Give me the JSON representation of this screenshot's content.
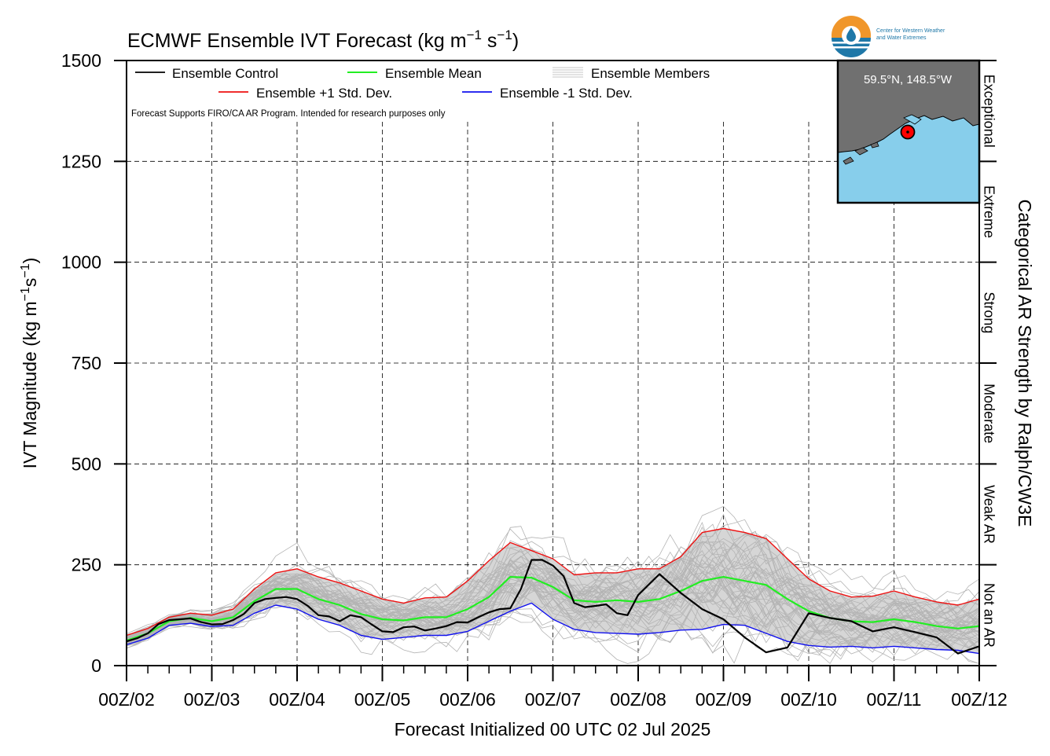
{
  "header": {
    "title": "ECMWF Ensemble IVT Forecast (kg m",
    "title_exp1": "−1",
    "title_mid": " s",
    "title_exp2": "−1",
    "title_end": ")",
    "logo_text_line1": "Center for Western Weather",
    "logo_text_line2": "and Water Extremes"
  },
  "inset": {
    "location_label": "59.5°N, 148.5°W"
  },
  "legend": {
    "control": "Ensemble Control",
    "mean": "Ensemble Mean",
    "members": "Ensemble Members",
    "plus_std": "Ensemble +1 Std. Dev.",
    "minus_std": "Ensemble -1 Std. Dev.",
    "disclaimer": "Forecast Supports FIRO/CA AR Program. Intended for research purposes only"
  },
  "colors": {
    "control": "#000000",
    "mean": "#22ee22",
    "plus_std": "#ee1111",
    "minus_std": "#1111ee",
    "members": "#b4b4b4",
    "spread_fill": "#d6d6d6",
    "ocean": "#87ceeb",
    "land": "#707070",
    "logo_orange": "#f0962a",
    "logo_blue": "#1f78a8"
  },
  "axes": {
    "ylabel_main": "IVT Magnitude (kg m",
    "ylabel_exp1": "−1",
    "ylabel_mid": "s",
    "ylabel_exp2": "−1",
    "ylabel_end": ")",
    "xlabel": "Forecast Initialized 00 UTC 02 Jul 2025",
    "right_label": "Categorical AR Strength by Ralph/CW3E",
    "categories": [
      {
        "label": "Not an AR",
        "from": 0,
        "to": 250
      },
      {
        "label": "Weak AR",
        "from": 250,
        "to": 500
      },
      {
        "label": "Moderate",
        "from": 500,
        "to": 750
      },
      {
        "label": "Strong",
        "from": 750,
        "to": 1000
      },
      {
        "label": "Extreme",
        "from": 1000,
        "to": 1250
      },
      {
        "label": "Exceptional",
        "from": 1250,
        "to": 1500
      }
    ]
  },
  "chart_data": {
    "type": "line",
    "title": "ECMWF Ensemble IVT Forecast (kg m−1 s−1)",
    "xlabel": "Forecast Initialized 00 UTC 02 Jul 2025",
    "ylabel": "IVT Magnitude (kg m−1s−1)",
    "ylim": [
      0,
      1500
    ],
    "yticks": [
      0,
      250,
      500,
      750,
      1000,
      1250,
      1500
    ],
    "xlim": [
      0,
      240
    ],
    "x_unit": "forecast hours",
    "xticks": [
      {
        "x": 0,
        "label": "00Z/02"
      },
      {
        "x": 24,
        "label": "00Z/03"
      },
      {
        "x": 48,
        "label": "00Z/04"
      },
      {
        "x": 72,
        "label": "00Z/05"
      },
      {
        "x": 96,
        "label": "00Z/06"
      },
      {
        "x": 120,
        "label": "00Z/07"
      },
      {
        "x": 144,
        "label": "00Z/08"
      },
      {
        "x": 168,
        "label": "00Z/09"
      },
      {
        "x": 192,
        "label": "00Z/10"
      },
      {
        "x": 216,
        "label": "00Z/11"
      },
      {
        "x": 240,
        "label": "00Z/12"
      }
    ],
    "grid": true,
    "legend_position": "top-left",
    "series": [
      {
        "name": "Ensemble Control",
        "x": [
          0,
          3,
          6,
          9,
          12,
          15,
          18,
          21,
          24,
          27,
          30,
          33,
          36,
          39,
          42,
          45,
          48,
          51,
          54,
          57,
          60,
          63,
          66,
          69,
          72,
          75,
          78,
          81,
          84,
          87,
          90,
          93,
          96,
          99,
          102,
          105,
          108,
          111,
          114,
          117,
          120,
          123,
          126,
          129,
          132,
          135,
          138,
          141,
          144,
          150,
          156,
          162,
          168,
          174,
          180,
          186,
          192,
          198,
          204,
          210,
          216,
          222,
          228,
          234,
          240
        ],
        "y": [
          60,
          68,
          80,
          103,
          113,
          115,
          117,
          108,
          102,
          103,
          113,
          128,
          155,
          165,
          168,
          170,
          165,
          148,
          125,
          122,
          110,
          125,
          120,
          102,
          85,
          83,
          95,
          97,
          87,
          92,
          98,
          108,
          107,
          120,
          132,
          140,
          142,
          190,
          262,
          262,
          248,
          222,
          155,
          145,
          148,
          152,
          130,
          125,
          175,
          227,
          180,
          140,
          115,
          70,
          33,
          45,
          130,
          118,
          110,
          85,
          95,
          83,
          70,
          30,
          48
        ]
      },
      {
        "name": "Ensemble Mean",
        "x": [
          0,
          6,
          12,
          18,
          24,
          30,
          36,
          42,
          48,
          54,
          60,
          66,
          72,
          78,
          84,
          90,
          96,
          102,
          108,
          114,
          120,
          126,
          132,
          138,
          144,
          150,
          156,
          162,
          168,
          174,
          180,
          186,
          192,
          198,
          204,
          210,
          216,
          222,
          228,
          234,
          240
        ],
        "y": [
          62,
          80,
          110,
          118,
          110,
          120,
          160,
          190,
          190,
          165,
          150,
          128,
          115,
          112,
          120,
          120,
          140,
          170,
          220,
          218,
          195,
          162,
          158,
          162,
          158,
          165,
          185,
          210,
          220,
          210,
          200,
          165,
          135,
          118,
          110,
          108,
          115,
          108,
          98,
          92,
          98
        ]
      },
      {
        "name": "Ensemble +1 Std. Dev.",
        "x": [
          0,
          6,
          12,
          18,
          24,
          30,
          36,
          42,
          48,
          54,
          60,
          66,
          72,
          78,
          84,
          90,
          96,
          102,
          108,
          114,
          120,
          126,
          132,
          138,
          144,
          150,
          156,
          162,
          168,
          174,
          180,
          186,
          192,
          198,
          204,
          210,
          216,
          222,
          228,
          234,
          240
        ],
        "y": [
          75,
          92,
          120,
          130,
          125,
          140,
          190,
          230,
          240,
          220,
          205,
          185,
          165,
          155,
          168,
          170,
          210,
          260,
          305,
          285,
          265,
          225,
          230,
          230,
          240,
          240,
          270,
          330,
          340,
          330,
          315,
          265,
          215,
          185,
          170,
          172,
          185,
          170,
          158,
          150,
          165
        ]
      },
      {
        "name": "Ensemble -1 Std. Dev.",
        "x": [
          0,
          6,
          12,
          18,
          24,
          30,
          36,
          42,
          48,
          54,
          60,
          66,
          72,
          78,
          84,
          90,
          96,
          102,
          108,
          114,
          120,
          126,
          132,
          138,
          144,
          150,
          156,
          162,
          168,
          174,
          180,
          186,
          192,
          198,
          204,
          210,
          216,
          222,
          228,
          234,
          240
        ],
        "y": [
          52,
          68,
          100,
          105,
          97,
          100,
          130,
          150,
          140,
          115,
          100,
          75,
          65,
          70,
          75,
          75,
          85,
          110,
          135,
          155,
          115,
          90,
          82,
          80,
          78,
          82,
          88,
          90,
          102,
          100,
          80,
          60,
          50,
          46,
          48,
          44,
          48,
          44,
          40,
          38,
          30
        ]
      }
    ]
  }
}
